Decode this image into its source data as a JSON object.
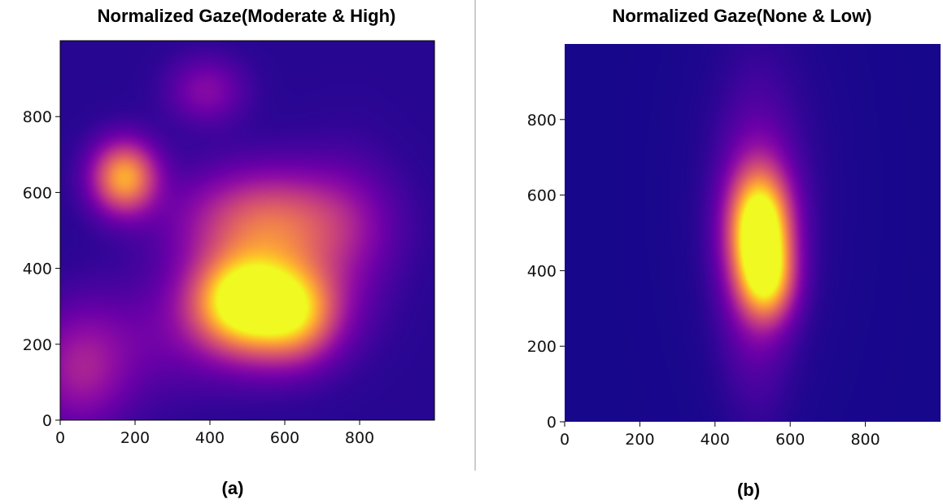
{
  "chart_data": [
    {
      "type": "heatmap",
      "title": "Normalized Gaze(Moderate & High)",
      "caption": "(a)",
      "colormap": "plasma",
      "xlim": [
        0,
        1000
      ],
      "ylim": [
        0,
        1000
      ],
      "xticks": [
        0,
        200,
        400,
        600,
        800
      ],
      "yticks": [
        0,
        200,
        400,
        600,
        800
      ],
      "background_level": 0.05,
      "peaks": [
        {
          "x": 540,
          "y": 300,
          "sx": 120,
          "sy": 95,
          "intensity": 0.98
        },
        {
          "x": 470,
          "y": 320,
          "sx": 80,
          "sy": 75,
          "intensity": 0.35
        },
        {
          "x": 640,
          "y": 270,
          "sx": 70,
          "sy": 80,
          "intensity": 0.3
        },
        {
          "x": 560,
          "y": 520,
          "sx": 160,
          "sy": 95,
          "intensity": 0.55
        },
        {
          "x": 170,
          "y": 640,
          "sx": 60,
          "sy": 65,
          "intensity": 0.75
        },
        {
          "x": 50,
          "y": 130,
          "sx": 90,
          "sy": 110,
          "intensity": 0.28
        },
        {
          "x": 390,
          "y": 870,
          "sx": 70,
          "sy": 60,
          "intensity": 0.22
        },
        {
          "x": 240,
          "y": 210,
          "sx": 150,
          "sy": 110,
          "intensity": 0.12
        },
        {
          "x": 770,
          "y": 480,
          "sx": 90,
          "sy": 150,
          "intensity": 0.12
        }
      ]
    },
    {
      "type": "heatmap",
      "title": "Normalized Gaze(None & Low)",
      "caption": "(b)",
      "colormap": "plasma",
      "xlim": [
        0,
        1000
      ],
      "ylim": [
        0,
        1000
      ],
      "xticks": [
        0,
        200,
        400,
        600,
        800
      ],
      "yticks": [
        0,
        200,
        400,
        600,
        800
      ],
      "background_level": 0.02,
      "peaks": [
        {
          "x": 520,
          "y": 510,
          "sx": 55,
          "sy": 105,
          "intensity": 1.0
        },
        {
          "x": 540,
          "y": 370,
          "sx": 50,
          "sy": 75,
          "intensity": 0.55
        },
        {
          "x": 510,
          "y": 450,
          "sx": 65,
          "sy": 240,
          "intensity": 0.25
        },
        {
          "x": 530,
          "y": 600,
          "sx": 120,
          "sy": 300,
          "intensity": 0.07
        }
      ]
    }
  ]
}
